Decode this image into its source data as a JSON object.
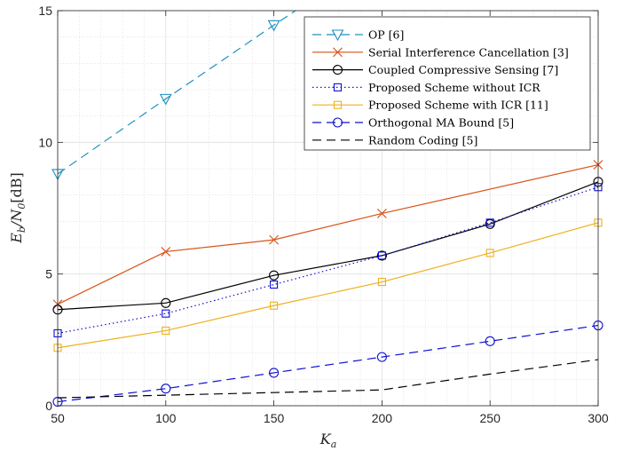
{
  "chart_data": {
    "type": "line",
    "xlabel": "K_a",
    "ylabel": "E_b/N_0[dB]",
    "xlim": [
      50,
      300
    ],
    "ylim": [
      0,
      15
    ],
    "xticks": [
      "50",
      "100",
      "150",
      "200",
      "250",
      "300"
    ],
    "yticks": [
      "0",
      "5",
      "10",
      "15"
    ],
    "grid": "major and minor",
    "legend_position": "top-right",
    "series": [
      {
        "name": "OP [6]",
        "color": "#1f8fbf",
        "dash": "10,6",
        "marker": "triangle-down",
        "x": [
          50,
          100,
          150,
          160
        ],
        "y": [
          8.8,
          11.65,
          14.45,
          15.0
        ],
        "marker_indices": [
          0,
          1,
          2
        ]
      },
      {
        "name": "Serial Interference Cancellation [3]",
        "color": "#d95319",
        "dash": "",
        "marker": "x",
        "x": [
          50,
          100,
          150,
          200,
          300
        ],
        "y": [
          3.85,
          5.85,
          6.3,
          7.3,
          9.15
        ],
        "marker_indices": [
          0,
          1,
          2,
          3,
          4
        ]
      },
      {
        "name": "Coupled Compressive Sensing [7]",
        "color": "#000000",
        "dash": "",
        "marker": "circle",
        "x": [
          50,
          100,
          150,
          200,
          250,
          300
        ],
        "y": [
          3.65,
          3.9,
          4.95,
          5.7,
          6.9,
          8.5
        ],
        "marker_indices": [
          0,
          1,
          2,
          3,
          4,
          5
        ]
      },
      {
        "name": "Proposed Scheme without ICR",
        "color": "#1010d0",
        "dash": "1.5,3",
        "marker": "square",
        "x": [
          50,
          100,
          150,
          200,
          250,
          300
        ],
        "y": [
          2.75,
          3.5,
          4.6,
          5.7,
          6.95,
          8.3
        ],
        "marker_indices": [
          0,
          1,
          2,
          3,
          4,
          5
        ]
      },
      {
        "name": "Proposed Scheme with ICR [11]",
        "color": "#edb120",
        "dash": "",
        "marker": "square",
        "x": [
          50,
          100,
          150,
          200,
          250,
          300
        ],
        "y": [
          2.2,
          2.85,
          3.8,
          4.7,
          5.8,
          6.95
        ],
        "marker_indices": [
          0,
          1,
          2,
          3,
          4,
          5
        ]
      },
      {
        "name": "Orthogonal MA Bound [5]",
        "color": "#1010d0",
        "dash": "10,6",
        "marker": "circle",
        "x": [
          50,
          100,
          150,
          200,
          250,
          300
        ],
        "y": [
          0.15,
          0.65,
          1.25,
          1.85,
          2.45,
          3.05
        ],
        "marker_indices": [
          0,
          1,
          2,
          3,
          4,
          5
        ]
      },
      {
        "name": "Random Coding [5]",
        "color": "#000000",
        "dash": "10,6",
        "marker": "none",
        "x": [
          50,
          100,
          150,
          200,
          250,
          300
        ],
        "y": [
          0.3,
          0.4,
          0.5,
          0.6,
          1.2,
          1.75
        ],
        "marker_indices": []
      }
    ]
  }
}
